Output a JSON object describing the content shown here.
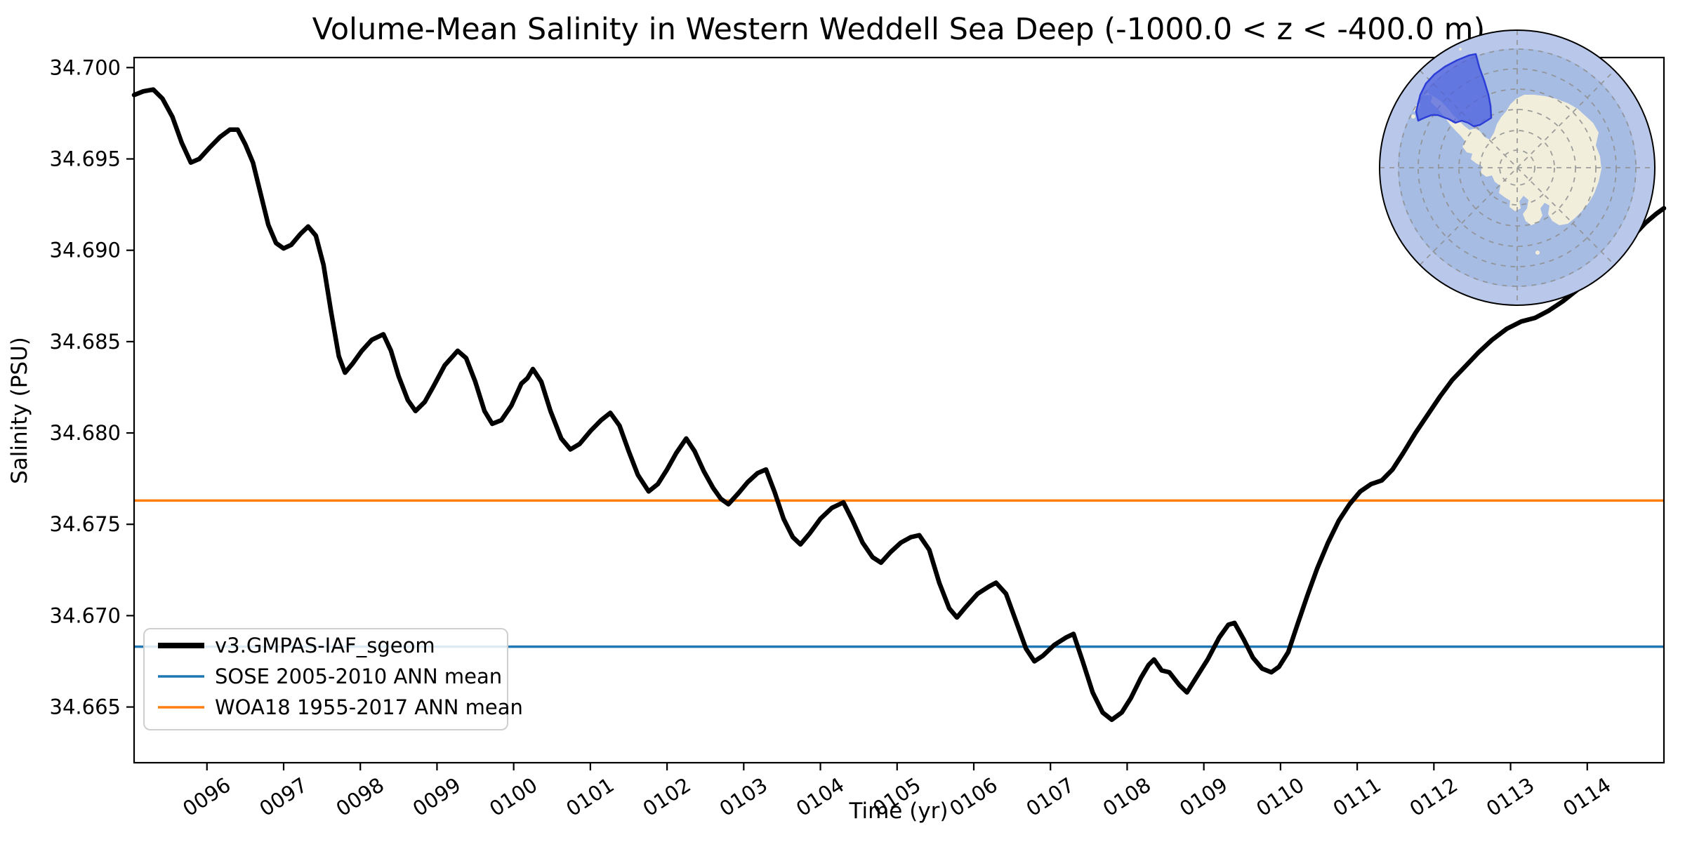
{
  "title": "Volume-Mean Salinity in Western Weddell Sea Deep (-1000.0 < z < -400.0 m)",
  "axes": {
    "xlabel": "Time (yr)",
    "ylabel": "Salinity (PSU)"
  },
  "legend": {
    "items": [
      {
        "label": "v3.GMPAS-IAF_sgeom",
        "color": "#000000",
        "line_width": 8
      },
      {
        "label": "SOSE 2005-2010 ANN mean",
        "color": "#1f77b4",
        "line_width": 3.5
      },
      {
        "label": "WOA18 1955-2017 ANN mean",
        "color": "#ff7f0e",
        "line_width": 3.5
      }
    ]
  },
  "chart_data": {
    "type": "line",
    "title": "Volume-Mean Salinity in Western Weddell Sea Deep (-1000.0 < z < -400.0 m)",
    "xlabel": "Time (yr)",
    "ylabel": "Salinity (PSU)",
    "xlim": [
      95.05,
      115.0
    ],
    "ylim": [
      34.66195,
      34.70055
    ],
    "grid": false,
    "legend_position": "lower left",
    "x_ticks": [
      96,
      97,
      98,
      99,
      100,
      101,
      102,
      103,
      104,
      105,
      106,
      107,
      108,
      109,
      110,
      111,
      112,
      113,
      114
    ],
    "x_tick_labels": [
      "0096",
      "0097",
      "0098",
      "0099",
      "0100",
      "0101",
      "0102",
      "0103",
      "0104",
      "0105",
      "0106",
      "0107",
      "0108",
      "0109",
      "0110",
      "0111",
      "0112",
      "0113",
      "0114"
    ],
    "y_ticks": [
      34.665,
      34.67,
      34.675,
      34.68,
      34.685,
      34.69,
      34.695,
      34.7
    ],
    "y_tick_labels": [
      "34.665",
      "34.670",
      "34.675",
      "34.680",
      "34.685",
      "34.690",
      "34.695",
      "34.700"
    ],
    "reference_lines": [
      {
        "name": "SOSE 2005-2010 ANN mean",
        "value": 34.6683,
        "color": "#1f77b4"
      },
      {
        "name": "WOA18 1955-2017 ANN mean",
        "value": 34.6763,
        "color": "#ff7f0e"
      }
    ],
    "series": [
      {
        "name": "v3.GMPAS-IAF_sgeom",
        "type": "line",
        "color": "#000000",
        "points": [
          [
            95.05,
            34.6985
          ],
          [
            95.17,
            34.6987
          ],
          [
            95.3,
            34.6988
          ],
          [
            95.42,
            34.6983
          ],
          [
            95.55,
            34.6973
          ],
          [
            95.67,
            34.6959
          ],
          [
            95.79,
            34.6948
          ],
          [
            95.9,
            34.695
          ],
          [
            96.03,
            34.6956
          ],
          [
            96.17,
            34.6962
          ],
          [
            96.3,
            34.6966
          ],
          [
            96.4,
            34.6966
          ],
          [
            96.5,
            34.6958
          ],
          [
            96.6,
            34.6948
          ],
          [
            96.7,
            34.6931
          ],
          [
            96.8,
            34.6914
          ],
          [
            96.9,
            34.6904
          ],
          [
            97.0,
            34.6901
          ],
          [
            97.1,
            34.6903
          ],
          [
            97.22,
            34.6909
          ],
          [
            97.32,
            34.6913
          ],
          [
            97.42,
            34.6908
          ],
          [
            97.52,
            34.6892
          ],
          [
            97.62,
            34.6866
          ],
          [
            97.72,
            34.6842
          ],
          [
            97.8,
            34.6833
          ],
          [
            97.9,
            34.6838
          ],
          [
            98.02,
            34.6845
          ],
          [
            98.15,
            34.6851
          ],
          [
            98.3,
            34.6854
          ],
          [
            98.4,
            34.6845
          ],
          [
            98.5,
            34.6831
          ],
          [
            98.62,
            34.6818
          ],
          [
            98.72,
            34.6812
          ],
          [
            98.84,
            34.6817
          ],
          [
            98.96,
            34.6826
          ],
          [
            99.1,
            34.6837
          ],
          [
            99.27,
            34.6845
          ],
          [
            99.38,
            34.6841
          ],
          [
            99.5,
            34.6828
          ],
          [
            99.62,
            34.6812
          ],
          [
            99.72,
            34.6805
          ],
          [
            99.84,
            34.6807
          ],
          [
            99.97,
            34.6815
          ],
          [
            100.1,
            34.6827
          ],
          [
            100.18,
            34.683
          ],
          [
            100.25,
            34.6835
          ],
          [
            100.36,
            34.6828
          ],
          [
            100.48,
            34.6812
          ],
          [
            100.62,
            34.6797
          ],
          [
            100.74,
            34.6791
          ],
          [
            100.86,
            34.6794
          ],
          [
            101.0,
            34.6801
          ],
          [
            101.14,
            34.6807
          ],
          [
            101.26,
            34.6811
          ],
          [
            101.38,
            34.6804
          ],
          [
            101.5,
            34.679
          ],
          [
            101.62,
            34.6777
          ],
          [
            101.76,
            34.6768
          ],
          [
            101.88,
            34.6772
          ],
          [
            102.0,
            34.678
          ],
          [
            102.12,
            34.6789
          ],
          [
            102.25,
            34.6797
          ],
          [
            102.36,
            34.679
          ],
          [
            102.48,
            34.6779
          ],
          [
            102.6,
            34.677
          ],
          [
            102.7,
            34.6764
          ],
          [
            102.8,
            34.6761
          ],
          [
            102.93,
            34.6767
          ],
          [
            103.05,
            34.6773
          ],
          [
            103.18,
            34.6778
          ],
          [
            103.29,
            34.678
          ],
          [
            103.4,
            34.6768
          ],
          [
            103.52,
            34.6753
          ],
          [
            103.64,
            34.6743
          ],
          [
            103.74,
            34.6739
          ],
          [
            103.86,
            34.6745
          ],
          [
            104.0,
            34.6753
          ],
          [
            104.15,
            34.6759
          ],
          [
            104.3,
            34.6762
          ],
          [
            104.42,
            34.6752
          ],
          [
            104.55,
            34.674
          ],
          [
            104.68,
            34.6732
          ],
          [
            104.79,
            34.6729
          ],
          [
            104.92,
            34.6735
          ],
          [
            105.05,
            34.674
          ],
          [
            105.18,
            34.6743
          ],
          [
            105.29,
            34.6744
          ],
          [
            105.42,
            34.6736
          ],
          [
            105.55,
            34.6718
          ],
          [
            105.68,
            34.6704
          ],
          [
            105.78,
            34.6699
          ],
          [
            105.9,
            34.6705
          ],
          [
            106.05,
            34.6712
          ],
          [
            106.2,
            34.6716
          ],
          [
            106.29,
            34.6718
          ],
          [
            106.42,
            34.6712
          ],
          [
            106.55,
            34.6697
          ],
          [
            106.68,
            34.6682
          ],
          [
            106.79,
            34.6675
          ],
          [
            106.9,
            34.6678
          ],
          [
            107.05,
            34.6684
          ],
          [
            107.2,
            34.6688
          ],
          [
            107.3,
            34.669
          ],
          [
            107.42,
            34.6675
          ],
          [
            107.55,
            34.6658
          ],
          [
            107.68,
            34.6647
          ],
          [
            107.8,
            34.6643
          ],
          [
            107.93,
            34.6647
          ],
          [
            108.05,
            34.6655
          ],
          [
            108.18,
            34.6666
          ],
          [
            108.28,
            34.6673
          ],
          [
            108.35,
            34.6676
          ],
          [
            108.45,
            34.667
          ],
          [
            108.55,
            34.6669
          ],
          [
            108.68,
            34.6662
          ],
          [
            108.78,
            34.6658
          ],
          [
            108.9,
            34.6666
          ],
          [
            109.05,
            34.6676
          ],
          [
            109.2,
            34.6688
          ],
          [
            109.32,
            34.6695
          ],
          [
            109.4,
            34.6696
          ],
          [
            109.52,
            34.6687
          ],
          [
            109.64,
            34.6677
          ],
          [
            109.76,
            34.6671
          ],
          [
            109.88,
            34.6669
          ],
          [
            109.98,
            34.6672
          ],
          [
            110.1,
            34.668
          ],
          [
            110.22,
            34.6695
          ],
          [
            110.35,
            34.6711
          ],
          [
            110.48,
            34.6726
          ],
          [
            110.62,
            34.674
          ],
          [
            110.76,
            34.6752
          ],
          [
            110.9,
            34.6761
          ],
          [
            111.04,
            34.6768
          ],
          [
            111.18,
            34.6772
          ],
          [
            111.32,
            34.6774
          ],
          [
            111.46,
            34.678
          ],
          [
            111.6,
            34.6789
          ],
          [
            111.76,
            34.68
          ],
          [
            111.92,
            34.681
          ],
          [
            112.08,
            34.682
          ],
          [
            112.24,
            34.6829
          ],
          [
            112.4,
            34.6836
          ],
          [
            112.58,
            34.6844
          ],
          [
            112.76,
            34.6851
          ],
          [
            112.95,
            34.6857
          ],
          [
            113.14,
            34.6861
          ],
          [
            113.32,
            34.6863
          ],
          [
            113.5,
            34.6867
          ],
          [
            113.68,
            34.6872
          ],
          [
            113.86,
            34.6878
          ],
          [
            114.04,
            34.6885
          ],
          [
            114.22,
            34.6892
          ],
          [
            114.4,
            34.6899
          ],
          [
            114.58,
            34.6907
          ],
          [
            114.76,
            34.6915
          ],
          [
            114.9,
            34.692
          ],
          [
            115.0,
            34.6923
          ]
        ]
      }
    ],
    "inset_map": {
      "type": "south-polar-stereographic-antarctica",
      "highlight": "western-weddell-sea-region",
      "ocean_color": "#a6bce2",
      "outer_ring_color": "#b9c8ea",
      "land_color": "#f1eedc",
      "region_fill_color": "#4a5de1",
      "region_edge_color": "#2d3ed6",
      "graticule_color": "#8f8f8f",
      "border_color": "#000000"
    }
  }
}
